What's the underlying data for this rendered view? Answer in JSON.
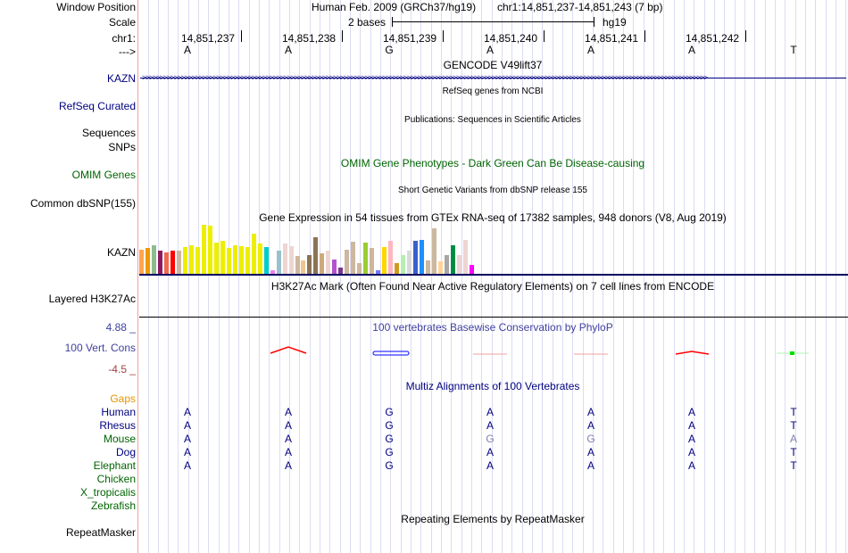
{
  "labels": {
    "window_position": "Window Position",
    "scale": "Scale",
    "chr": "chr1:",
    "strand": "--->",
    "kazn": "KAZN",
    "refseq": "RefSeq Curated",
    "sequences": "Sequences",
    "snps": "SNPs",
    "omim": "OMIM Genes",
    "dbsnp": "Common dbSNP(155)",
    "gtex": "KAZN",
    "h3k27ac": "Layered H3K27Ac",
    "cons_max": "4.88 _",
    "cons": "100 Vert. Cons",
    "cons_min": "-4.5 _",
    "gaps": "Gaps",
    "repeatmasker": "RepeatMasker"
  },
  "header": {
    "assembly": "Human Feb. 2009 (GRCh37/hg19)",
    "position": "chr1:14,851,237-14,851,243 (7 bp)",
    "scale_text": "2 bases",
    "scale_db": "hg19"
  },
  "positions": [
    "14,851,237",
    "14,851,238",
    "14,851,239",
    "14,851,240",
    "14,851,241",
    "14,851,242"
  ],
  "bases": [
    "A",
    "A",
    "G",
    "A",
    "A",
    "A",
    "T"
  ],
  "tracks": {
    "gencode": "GENCODE V49lift37",
    "refseq": "RefSeq genes from NCBI",
    "pubs": "Publications: Sequences in Scientific Articles",
    "omim": "OMIM Gene Phenotypes - Dark Green Can Be Disease-causing",
    "dbsnp": "Short Genetic Variants from dbSNP release 155",
    "gtex": "Gene Expression in 54 tissues from GTEx RNA-seq of 17382 samples, 948 donors (V8, Aug 2019)",
    "h3k27ac": "H3K27Ac Mark (Often Found Near Active Regulatory Elements) on 7 cell lines from ENCODE",
    "phylop": "100 vertebrates Basewise Conservation by PhyloP",
    "multiz": "Multiz Alignments of 100 Vertebrates",
    "rmsk": "Repeating Elements by RepeatMasker"
  },
  "species": [
    {
      "name": "Human",
      "color": "#000080",
      "bases": [
        "A",
        "A",
        "G",
        "A",
        "A",
        "A",
        "T"
      ]
    },
    {
      "name": "Rhesus",
      "color": "#000080",
      "bases": [
        "A",
        "A",
        "G",
        "A",
        "A",
        "A",
        "T"
      ]
    },
    {
      "name": "Mouse",
      "color": "#006400",
      "bases": [
        "A",
        "A",
        "G",
        "G",
        "G",
        "A",
        "A"
      ],
      "diff": [
        3,
        4,
        6
      ]
    },
    {
      "name": "Dog",
      "color": "#000080",
      "bases": [
        "A",
        "A",
        "G",
        "A",
        "A",
        "A",
        "T"
      ]
    },
    {
      "name": "Elephant",
      "color": "#006400",
      "bases": [
        "A",
        "A",
        "G",
        "A",
        "A",
        "A",
        "T"
      ]
    },
    {
      "name": "Chicken",
      "color": "#006400",
      "bases": []
    },
    {
      "name": "X_tropicalis",
      "color": "#006400",
      "bases": []
    },
    {
      "name": "Zebrafish",
      "color": "#006400",
      "bases": []
    }
  ],
  "gtex": {
    "relative_values": [
      0.5,
      0.52,
      0.58,
      0.48,
      0.43,
      0.47,
      0.48,
      0.54,
      0.58,
      0.54,
      1.0,
      0.98,
      0.63,
      0.67,
      0.52,
      0.58,
      0.56,
      0.54,
      0.81,
      0.61,
      0.54,
      0.08,
      0.47,
      0.61,
      0.56,
      0.36,
      0.28,
      0.38,
      0.74,
      0.41,
      0.48,
      0.3,
      0.12,
      0.5,
      0.65,
      0.21,
      0.63,
      0.52,
      0.07,
      0.54,
      0.67,
      0.21,
      0.38,
      0.47,
      0.68,
      0.7,
      0.27,
      0.92,
      0.25,
      0.39,
      0.58,
      0.38,
      0.7,
      0.18
    ],
    "colors": [
      "#FFA54F",
      "#EE9A00",
      "#8FBC8F",
      "#8B1C62",
      "#EE6A50",
      "#FF0000",
      "#CDB79E",
      "#EEEE00",
      "#EEEE00",
      "#EEEE00",
      "#EEEE00",
      "#EEEE00",
      "#EEEE00",
      "#EEEE00",
      "#EEEE00",
      "#EEEE00",
      "#EEEE00",
      "#EEEE00",
      "#EEEE00",
      "#EEEE00",
      "#00CDCD",
      "#EE82EE",
      "#9AC0CD",
      "#EED5D2",
      "#EED5D2",
      "#CDB79E",
      "#EEC591",
      "#8B7355",
      "#8B7355",
      "#CDAA7D",
      "#EED5D2",
      "#B452CD",
      "#7A378B",
      "#CDB79E",
      "#CDB79E",
      "#CDB79E",
      "#9ACD32",
      "#CDB79E",
      "#7777FF",
      "#FFD700",
      "#FFB6C1",
      "#CD9B1D",
      "#B4EEB4",
      "#D9D9D9",
      "#3A5FCD",
      "#1E90FF",
      "#CDB79E",
      "#CDB79E",
      "#FFD39B",
      "#A6A6A6",
      "#008B45",
      "#EED5D2",
      "#EED5D2",
      "#FF00FF"
    ]
  }
}
